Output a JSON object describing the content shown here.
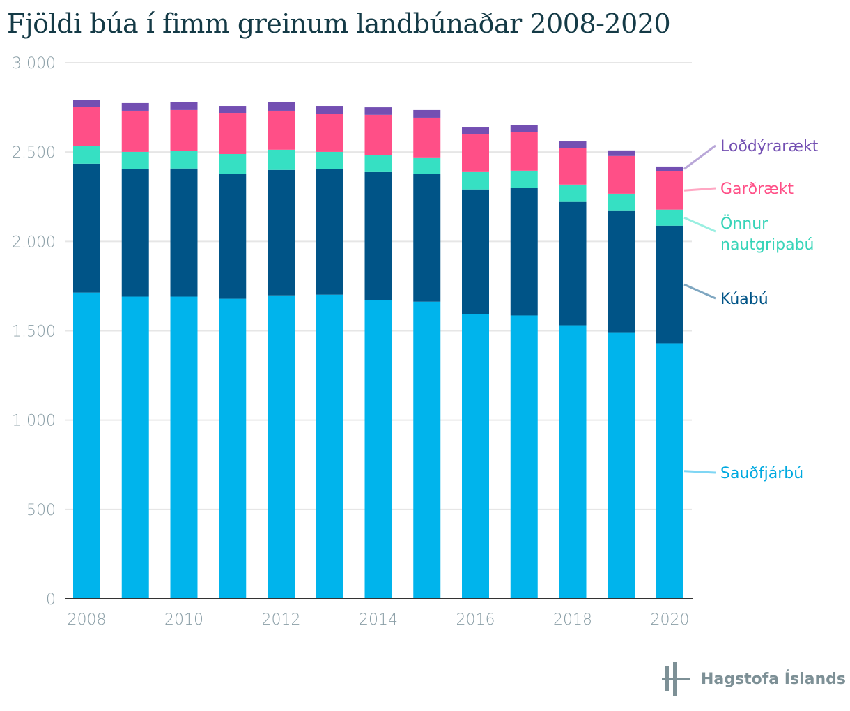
{
  "chart_data": {
    "type": "bar",
    "stacked": true,
    "title": "Fjöldi búa í fimm greinum landbúnaðar 2008-2020",
    "xlabel": "",
    "ylabel": "",
    "ylim": [
      0,
      3000
    ],
    "yticks": [
      0,
      500,
      1000,
      1500,
      2000,
      2500,
      3000
    ],
    "ytick_labels": [
      "0",
      "500",
      "1.000",
      "1.500",
      "2.000",
      "2.500",
      "3.000"
    ],
    "categories": [
      "2008",
      "2009",
      "2010",
      "2011",
      "2012",
      "2013",
      "2014",
      "2015",
      "2016",
      "2017",
      "2018",
      "2019",
      "2020"
    ],
    "xtick_labels": [
      "2008",
      "",
      "2010",
      "",
      "2012",
      "",
      "2014",
      "",
      "2016",
      "",
      "2018",
      "",
      "2020"
    ],
    "grid": true,
    "legend_placement": "right (direct labels)",
    "series": [
      {
        "name": "Sauðfjárbú",
        "color": "#00b4ec",
        "label_color": "#00a9e0",
        "leader_color": "#7fd6f4",
        "values": [
          1714,
          1691,
          1691,
          1679,
          1698,
          1702,
          1671,
          1663,
          1593,
          1586,
          1531,
          1488,
          1430
        ]
      },
      {
        "name": "Kúabú",
        "color": "#005487",
        "label_color": "#005487",
        "leader_color": "#7fa7c1",
        "values": [
          721,
          713,
          717,
          697,
          702,
          702,
          717,
          713,
          698,
          712,
          690,
          686,
          658
        ]
      },
      {
        "name": "Önnur nautgripabú",
        "name_lines": [
          "Önnur",
          "nautgripabú"
        ],
        "color": "#36e0c3",
        "label_color": "#36d4b8",
        "leader_color": "#9aefe1",
        "values": [
          97,
          97,
          97,
          113,
          113,
          97,
          94,
          94,
          97,
          98,
          97,
          93,
          90
        ]
      },
      {
        "name": "Garðrækt",
        "color": "#ff4f87",
        "label_color": "#ff4f87",
        "leader_color": "#ffa7c3",
        "values": [
          222,
          230,
          230,
          230,
          218,
          214,
          226,
          222,
          214,
          214,
          206,
          211,
          214
        ]
      },
      {
        "name": "Loðdýrarækt",
        "color": "#734fb2",
        "label_color": "#734fb2",
        "leader_color": "#b9a7d8",
        "values": [
          39,
          43,
          43,
          39,
          47,
          43,
          42,
          43,
          39,
          39,
          39,
          31,
          27
        ]
      }
    ]
  },
  "footer": {
    "logo_text": "Hagstofa Íslands"
  }
}
